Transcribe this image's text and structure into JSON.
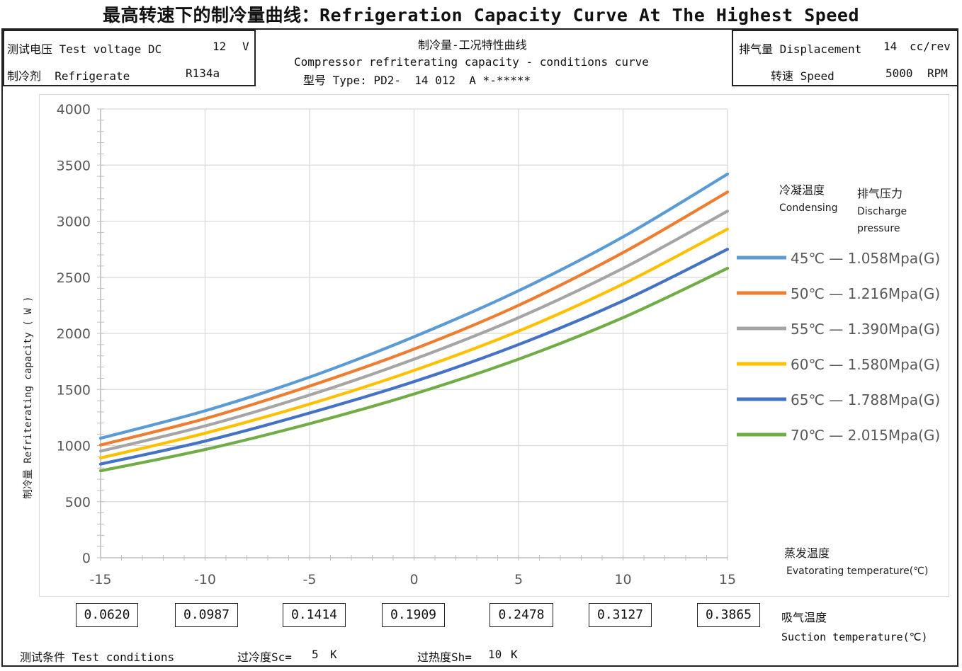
{
  "header": {
    "title": "最高转速下的制冷量曲线：Refrigeration Capacity Curve At The Highest Speed"
  },
  "left_box": {
    "voltage_label": "测试电压 Test voltage DC",
    "voltage_value": "12",
    "voltage_unit": "V",
    "refrigerant_label": "制冷剂  Refrigerate",
    "refrigerant_value": "R134a"
  },
  "center_box": {
    "title_cn": "制冷量-工况特性曲线",
    "title_en": "Compressor refriterating capacity - conditions curve",
    "model": "型号 Type: PD2-  14 012  A *-*****"
  },
  "right_box": {
    "displacement_label": "排气量 Displacement",
    "displacement_value": "14",
    "displacement_unit": "cc/rev",
    "speed_label": "转速 Speed",
    "speed_value": "5000",
    "speed_unit": "RPM"
  },
  "chart_data": {
    "type": "line",
    "ylabel": "制冷量 Refriterating capacity  ( W )",
    "xlabel_cn": "蒸发温度",
    "xlabel_en": "Evatorating temperature(℃)",
    "xlim": [
      -15,
      15
    ],
    "ylim": [
      0,
      4000
    ],
    "xticks": [
      -15,
      -10,
      -5,
      0,
      5,
      10,
      15
    ],
    "yticks": [
      0,
      500,
      1000,
      1500,
      2000,
      2500,
      3000,
      3500,
      4000
    ],
    "grid": true,
    "legend_title_condensing_cn": "冷凝温度",
    "legend_title_condensing_en": "Condensing",
    "legend_title_discharge_cn": "排气压力",
    "legend_title_discharge_en_1": "Discharge",
    "legend_title_discharge_en_2": "pressure",
    "legend_position": "right",
    "x": [
      -15,
      -10,
      -5,
      0,
      5,
      10,
      15
    ],
    "series": [
      {
        "name": "45℃ — 1.058Mpa(G)",
        "color": "#5b9bd5",
        "values": [
          1065,
          1310,
          1610,
          1970,
          2380,
          2860,
          3420
        ]
      },
      {
        "name": "50℃ — 1.216Mpa(G)",
        "color": "#ed7d31",
        "values": [
          1005,
          1240,
          1530,
          1860,
          2250,
          2720,
          3260
        ]
      },
      {
        "name": "55℃ — 1.390Mpa(G)",
        "color": "#a5a5a5",
        "values": [
          950,
          1175,
          1450,
          1770,
          2140,
          2580,
          3090
        ]
      },
      {
        "name": "60℃ — 1.580Mpa(G)",
        "color": "#ffc000",
        "values": [
          890,
          1110,
          1370,
          1670,
          2020,
          2440,
          2930
        ]
      },
      {
        "name": "65℃ — 1.788Mpa(G)",
        "color": "#4472c4",
        "values": [
          835,
          1040,
          1290,
          1570,
          1900,
          2290,
          2750
        ]
      },
      {
        "name": "70℃ — 2.015Mpa(G)",
        "color": "#70ad47",
        "values": [
          775,
          965,
          1195,
          1460,
          1770,
          2140,
          2580
        ]
      }
    ]
  },
  "suction": {
    "values": [
      "0.0620",
      "0.0987",
      "0.1414",
      "0.1909",
      "0.2478",
      "0.3127",
      "0.3865"
    ],
    "label_cn": "吸气温度",
    "label_en": "Suction temperature(℃)"
  },
  "footer": {
    "conditions": "测试条件 Test conditions",
    "subcool_label": "过冷度Sc=",
    "subcool_value": "5",
    "subcool_unit": "K",
    "superheat_label": "过热度Sh=",
    "superheat_value": "10",
    "superheat_unit": "K"
  }
}
